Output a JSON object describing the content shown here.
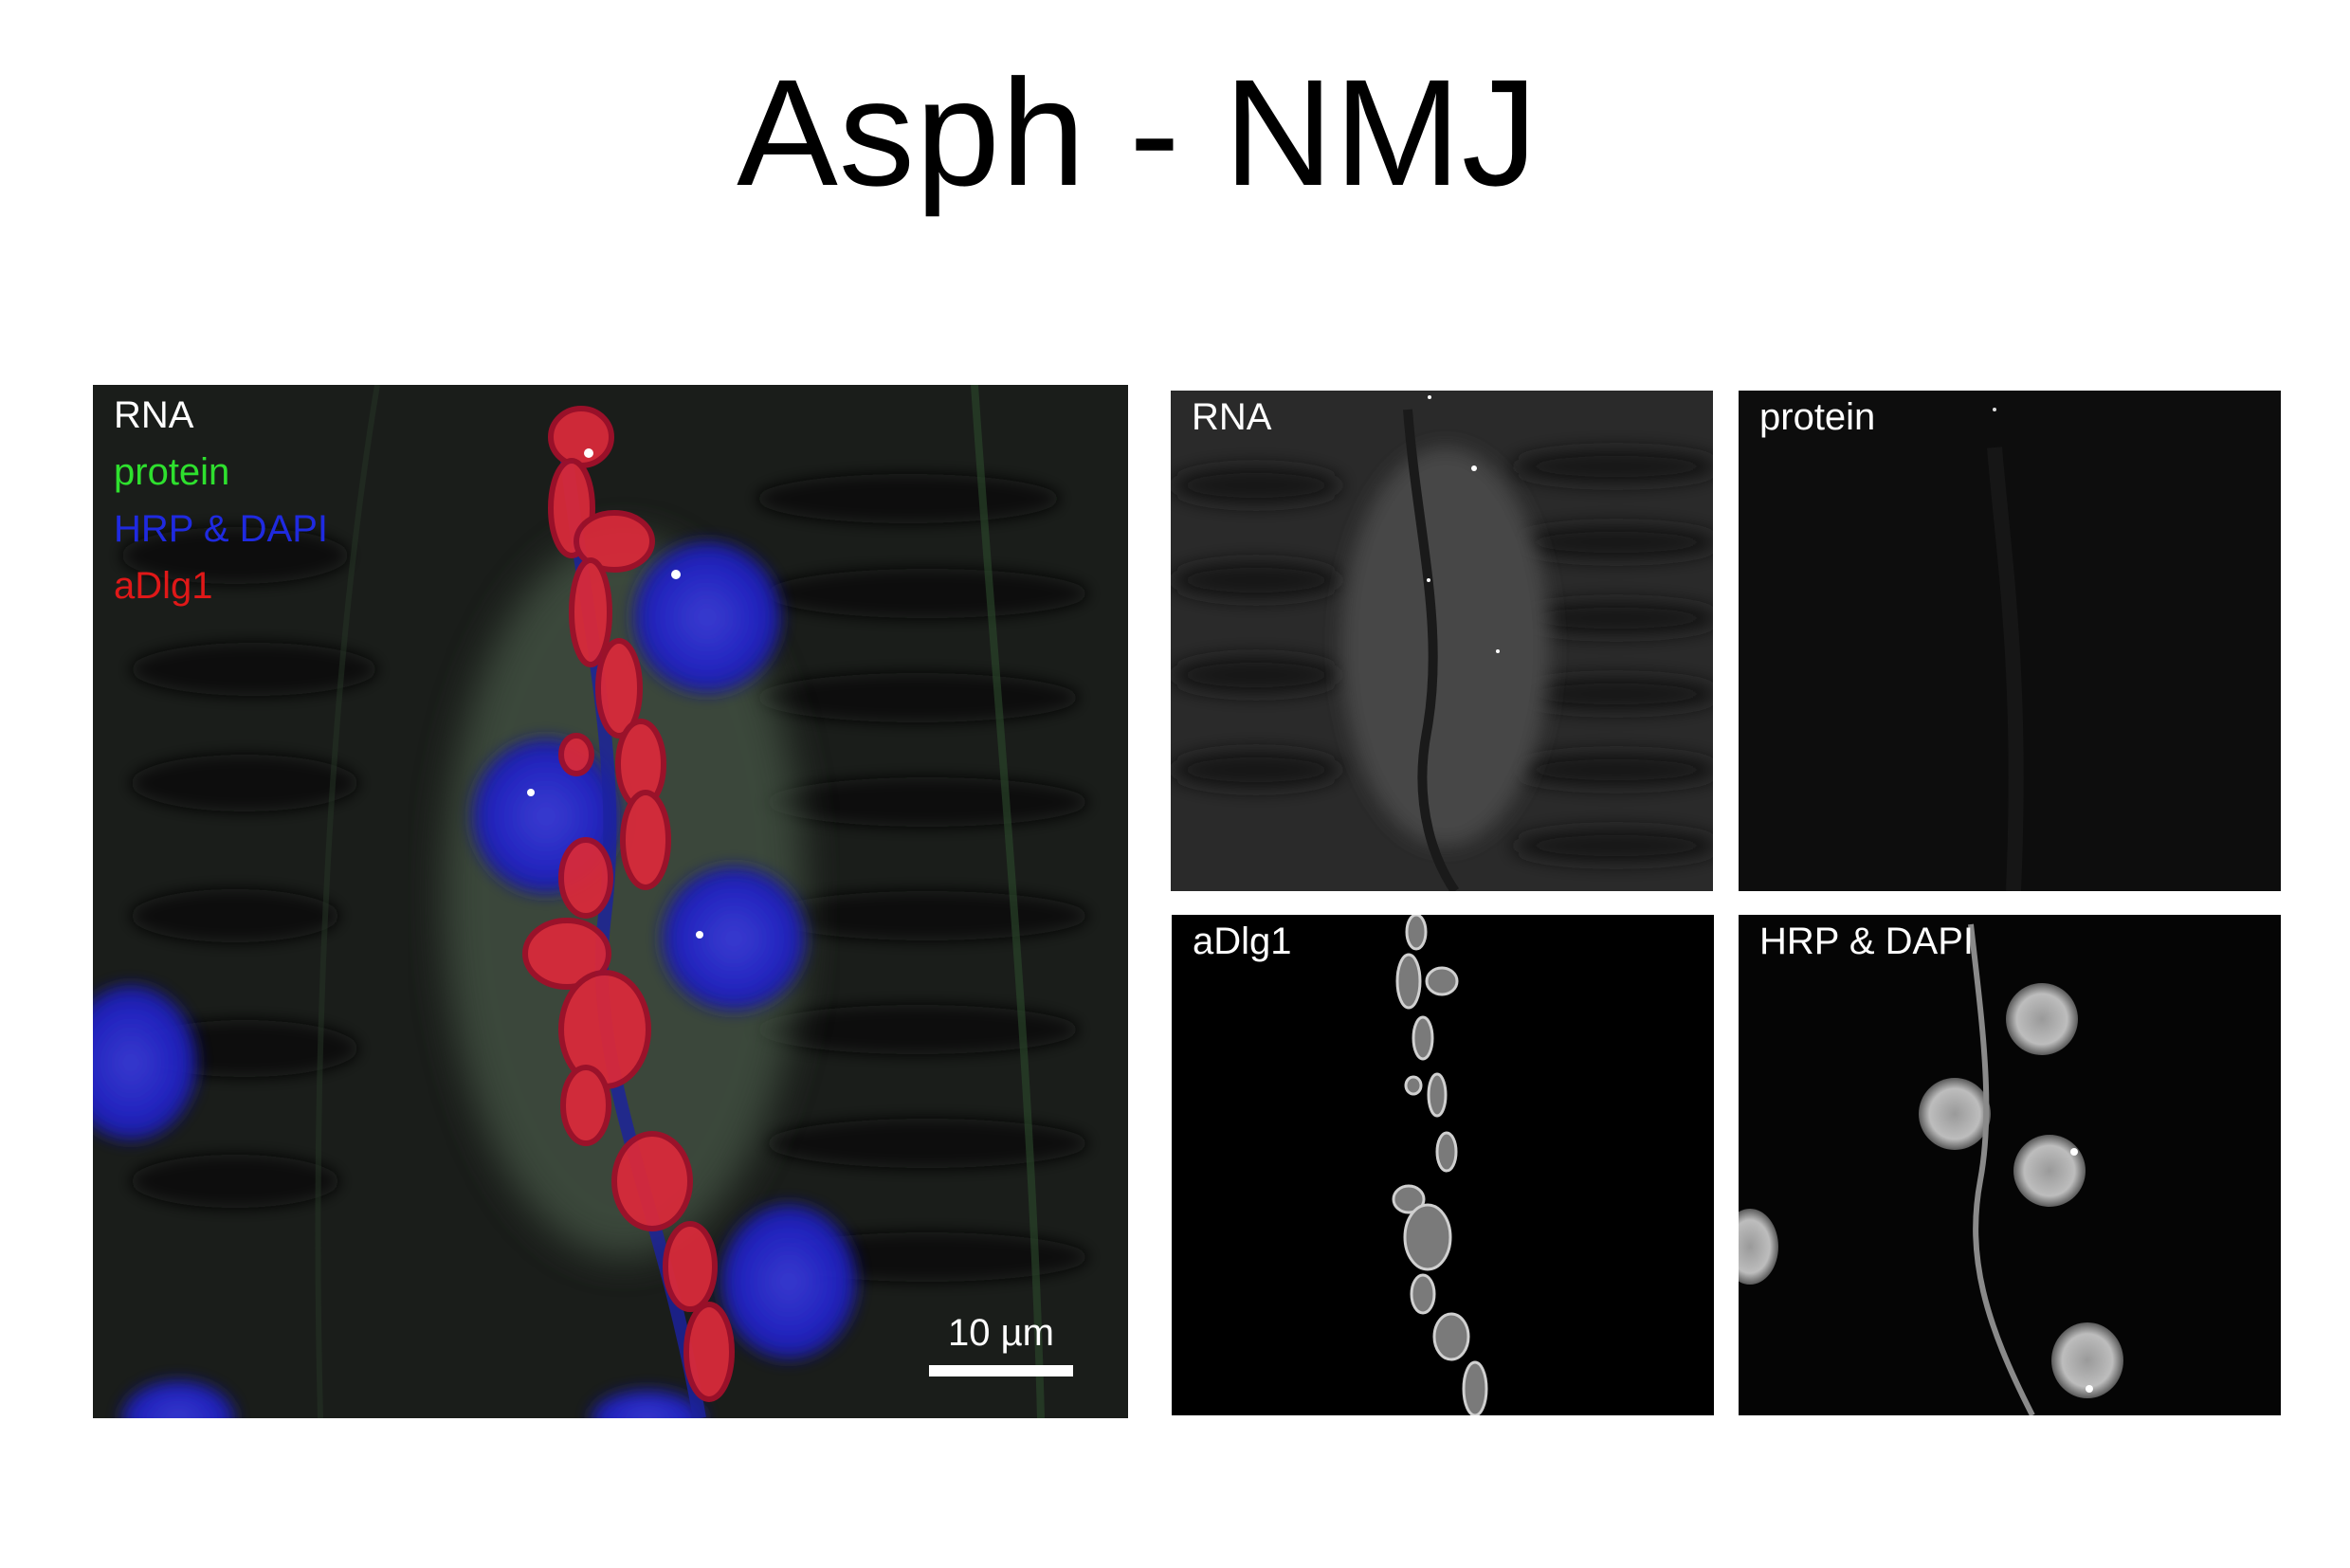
{
  "title": "Asph - NMJ",
  "merge": {
    "legend": [
      {
        "text": "RNA",
        "color": "#ffffff"
      },
      {
        "text": "protein",
        "color": "#2ee02e"
      },
      {
        "text": "HRP & DAPI",
        "color": "#1f2ae0"
      },
      {
        "text": "aDlg1",
        "color": "#e01818"
      }
    ],
    "scale_label": "10 µm"
  },
  "panels": {
    "rna": "RNA",
    "protein": "protein",
    "adlg1": "aDlg1",
    "hrp_dapi": "HRP & DAPI"
  }
}
